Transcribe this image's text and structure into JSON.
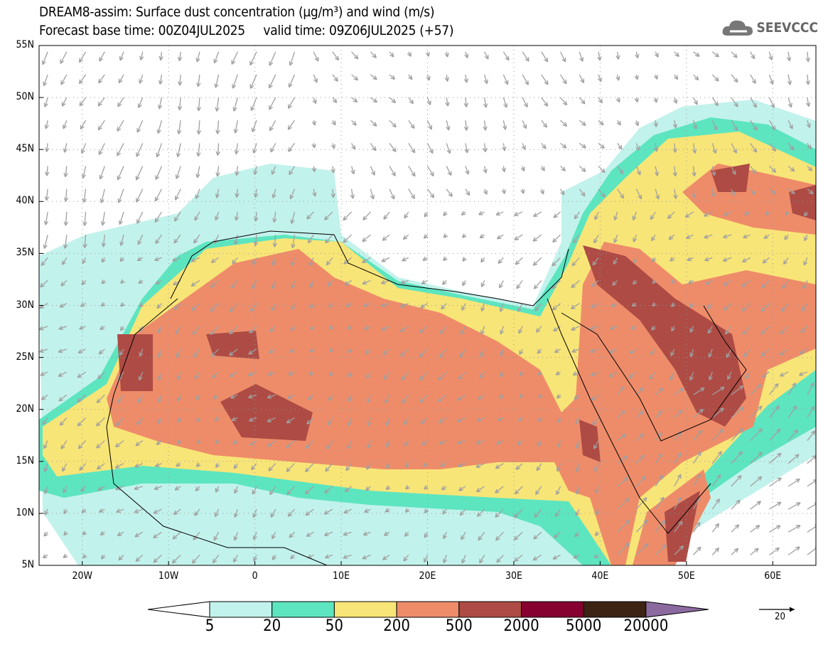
{
  "title": {
    "line1": "DREAM8-assim: Surface dust concentration (µg/m³) and wind (m/s)",
    "line2": "Forecast base time: 00Z04JUL2025     valid time: 09Z06JUL2025 (+57)"
  },
  "logo": {
    "text": "SEEVCCC",
    "icon": "cloud-icon"
  },
  "axes": {
    "lat_labels": [
      "55N",
      "50N",
      "45N",
      "40N",
      "35N",
      "30N",
      "25N",
      "20N",
      "15N",
      "10N",
      "5N"
    ],
    "lon_labels": [
      "20W",
      "10W",
      "0",
      "10E",
      "20E",
      "30E",
      "40E",
      "50E",
      "60E"
    ],
    "lon_range": [
      -25,
      65
    ],
    "lat_range": [
      5,
      55
    ]
  },
  "colorbar": {
    "labels": [
      "5",
      "20",
      "50",
      "200",
      "500",
      "2000",
      "5000",
      "20000"
    ],
    "colors": [
      "#ffffff",
      "#c2f2ec",
      "#5de5c0",
      "#f8e577",
      "#ee8c6a",
      "#ad4b44",
      "#860030",
      "#3d2314",
      "#8c6aa0"
    ]
  },
  "wind_reference": {
    "value": "20"
  }
}
